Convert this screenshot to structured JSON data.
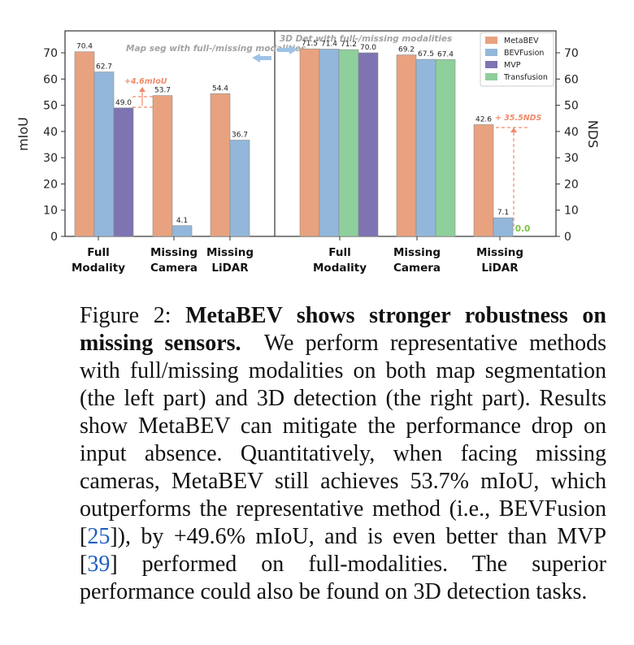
{
  "chart_data": [
    {
      "type": "bar",
      "title": "Map seg with full-/missing modalities",
      "ylabel": "mIoU",
      "xlabel": "",
      "ylim": [
        0,
        75
      ],
      "yticks": [
        0,
        10,
        20,
        30,
        40,
        50,
        60,
        70
      ],
      "categories": [
        "Full Modality",
        "Missing Camera",
        "Missing LiDAR"
      ],
      "category_lines": [
        [
          "Full",
          "Modality"
        ],
        [
          "Missing",
          "Camera"
        ],
        [
          "Missing",
          "LiDAR"
        ]
      ],
      "series": [
        {
          "name": "MetaBEV",
          "values": [
            70.4,
            53.7,
            54.4
          ]
        },
        {
          "name": "BEVFusion",
          "values": [
            62.7,
            4.1,
            36.7
          ]
        },
        {
          "name": "MVP",
          "values": [
            49.0,
            null,
            null
          ]
        }
      ],
      "value_labels": [
        [
          "70.4",
          "62.7",
          "49.0"
        ],
        [
          "53.7",
          "4.1"
        ],
        [
          "54.4",
          "36.7"
        ]
      ],
      "annotation": "+4.6mIoU"
    },
    {
      "type": "bar",
      "title": "3D Det with full-/missing modalities",
      "ylabel": "NDS",
      "xlabel": "",
      "ylim": [
        0,
        75
      ],
      "yticks": [
        0,
        10,
        20,
        30,
        40,
        50,
        60,
        70
      ],
      "categories": [
        "Full Modality",
        "Missing Camera",
        "Missing LiDAR"
      ],
      "category_lines": [
        [
          "Full",
          "Modality"
        ],
        [
          "Missing",
          "Camera"
        ],
        [
          "Missing",
          "LiDAR"
        ]
      ],
      "series": [
        {
          "name": "MetaBEV",
          "values": [
            71.5,
            69.2,
            42.6
          ]
        },
        {
          "name": "BEVFusion",
          "values": [
            71.4,
            67.5,
            7.1
          ]
        },
        {
          "name": "Transfusion",
          "values": [
            71.2,
            67.4,
            0.0
          ]
        },
        {
          "name": "MVP",
          "values": [
            70.0,
            null,
            null
          ]
        }
      ],
      "value_labels": [
        [
          "71.5",
          "71.4",
          "71.2",
          "70.0"
        ],
        [
          "69.2",
          "67.5",
          "67.4"
        ],
        [
          "42.6",
          "7.1",
          "0.0"
        ]
      ],
      "annotation": "+ 35.5NDS"
    }
  ],
  "legend": {
    "placement": "top-right",
    "entries": [
      {
        "name": "MetaBEV",
        "color": "#e8a27f"
      },
      {
        "name": "BEVFusion",
        "color": "#93b7da"
      },
      {
        "name": "MVP",
        "color": "#7e74b2"
      },
      {
        "name": "Transfusion",
        "color": "#8fcf9b"
      }
    ]
  },
  "colors": {
    "MetaBEV": "#e8a27f",
    "BEVFusion": "#93b7da",
    "MVP": "#7e74b2",
    "Transfusion": "#8fcf9b",
    "annotation": "#f08a6a",
    "zero_label": "#7cc242",
    "title_arrow": "#9ec3e6"
  },
  "caption": {
    "label": "Figure 2:",
    "lead": "MetaBEV shows stronger robustness on missing sensors.",
    "text_1": "We perform representative methods with full/missing modalities on both map segmentation (the left part) and 3D detection (the right part). Results show MetaBEV can mitigate the performance drop on input absence. Quantitatively, when facing missing cameras, MetaBEV still achieves 53.7% mIoU, which outperforms the representative method (i.e., BEVFusion [",
    "ref_1": "25",
    "text_2": "]), by +49.6% mIoU, and is even better than MVP [",
    "ref_2": "39",
    "text_3": "] performed on full-modalities. The superior performance could also be found on 3D detection tasks."
  }
}
